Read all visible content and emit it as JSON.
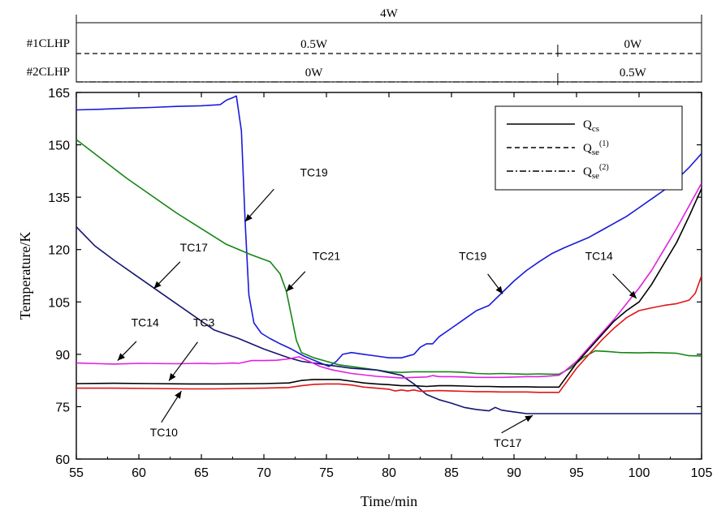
{
  "chart_data": {
    "type": "line",
    "xlabel": "Time/min",
    "ylabel": "Temperature/K",
    "xlim": [
      55,
      105
    ],
    "ylim": [
      60,
      165
    ],
    "x_ticks": [
      55,
      60,
      65,
      70,
      75,
      80,
      85,
      90,
      95,
      100,
      105
    ],
    "y_ticks": [
      60,
      75,
      90,
      105,
      120,
      135,
      150,
      165
    ],
    "grid": false,
    "legend": {
      "position": "top-right",
      "entries": [
        {
          "name": "Q",
          "sub": "cs",
          "sup": "",
          "dash": "solid"
        },
        {
          "name": "Q",
          "sub": "se",
          "sup": "(1)",
          "dash": "dashed"
        },
        {
          "name": "Q",
          "sub": "se",
          "sup": "(2)",
          "dash": "dashdot"
        }
      ]
    },
    "power_timeline": [
      {
        "label": "",
        "dash": "solid",
        "segments": [
          {
            "from": 55,
            "to": 105,
            "text": "4W",
            "text_at": 80
          }
        ]
      },
      {
        "label": "#1CLHP",
        "dash": "dashed",
        "segments": [
          {
            "from": 55,
            "to": 93.5,
            "text": "0.5W",
            "text_at": 74
          },
          {
            "from": 93.5,
            "to": 105,
            "text": "0W",
            "text_at": 99.5
          }
        ]
      },
      {
        "label": "#2CLHP",
        "dash": "dashdot",
        "segments": [
          {
            "from": 55,
            "to": 93.5,
            "text": "0W",
            "text_at": 74
          },
          {
            "from": 93.5,
            "to": 105,
            "text": "0.5W",
            "text_at": 99.5
          }
        ]
      }
    ],
    "series": [
      {
        "name": "TC19",
        "color": "#1a1adc",
        "x": [
          55,
          57,
          59,
          61,
          63,
          65,
          66.5,
          67,
          67.5,
          67.8,
          68.2,
          68.5,
          68.8,
          69.2,
          69.8,
          70.5,
          71.3,
          72.2,
          73.2,
          74.2,
          75.2,
          75.8,
          76.3,
          77,
          78,
          79,
          80,
          81,
          82,
          82.5,
          83,
          83.5,
          84,
          85,
          86,
          87,
          88,
          89,
          90,
          91,
          92,
          93,
          94,
          95,
          96,
          97,
          98,
          99,
          100,
          101,
          102,
          103,
          104,
          105
        ],
        "y": [
          160,
          160.2,
          160.5,
          160.7,
          161,
          161.2,
          161.5,
          162.8,
          163.5,
          164,
          154,
          128,
          107,
          99,
          96,
          94.5,
          93,
          91.5,
          89.5,
          88,
          86.5,
          88,
          90,
          90.5,
          90,
          89.5,
          89,
          89,
          90,
          92,
          93,
          93,
          95,
          97.5,
          100,
          102.5,
          104,
          107.5,
          111,
          114,
          116.5,
          118.8,
          120.5,
          122,
          123.5,
          125.5,
          127.5,
          129.5,
          132,
          134.5,
          137,
          140,
          143.5,
          147.5
        ]
      },
      {
        "name": "TC21",
        "color": "#158515",
        "x": [
          55,
          57,
          59,
          61,
          63,
          65,
          67,
          69,
          70.5,
          71.3,
          71.8,
          72.2,
          72.6,
          73,
          74,
          75,
          76,
          77,
          78,
          79,
          80,
          81,
          82,
          83,
          84,
          85,
          86,
          87,
          88,
          89,
          90,
          91,
          92,
          93,
          93.6,
          94.5,
          95.5,
          96.5,
          97.5,
          98.5,
          100,
          101,
          102,
          103,
          104,
          105
        ],
        "y": [
          151.5,
          146,
          140.5,
          135.5,
          130.5,
          126,
          121.5,
          118.5,
          116.5,
          113,
          108,
          101,
          94,
          90.5,
          89,
          88,
          87,
          86.5,
          86,
          85.5,
          85,
          84.8,
          85,
          85,
          85,
          85,
          84.8,
          84.5,
          84.4,
          84.5,
          84.4,
          84.3,
          84.4,
          84.3,
          84.3,
          86,
          89,
          91,
          90.8,
          90.5,
          90.4,
          90.5,
          90.4,
          90.3,
          89.6,
          89.5
        ]
      },
      {
        "name": "TC17",
        "color": "#151570",
        "x": [
          55,
          56.5,
          58,
          60,
          62,
          64,
          66,
          68,
          70,
          72,
          73,
          75,
          77,
          79,
          81,
          82,
          83,
          84,
          85,
          86,
          87,
          88,
          88.5,
          89,
          90,
          91,
          91.5,
          92,
          93,
          95,
          97,
          99,
          101,
          103,
          105
        ],
        "y": [
          126.5,
          121,
          117,
          112,
          107,
          102,
          97,
          94.5,
          91.5,
          89,
          88,
          87,
          86,
          85.5,
          84,
          81.5,
          78.5,
          77,
          76,
          74.8,
          74.2,
          73.8,
          74.8,
          74,
          73.5,
          73,
          73,
          73,
          73,
          73,
          73,
          73,
          73,
          73,
          73
        ]
      },
      {
        "name": "TC14",
        "color": "#e020e0",
        "x": [
          55,
          57,
          58,
          60,
          63,
          65,
          66,
          67,
          67.5,
          68,
          69,
          70,
          71,
          72,
          72.8,
          73.5,
          74.5,
          75.5,
          77,
          79,
          81,
          82,
          83,
          83.5,
          84,
          85,
          87,
          89,
          91,
          92,
          93,
          93.6,
          94,
          95,
          96,
          97,
          98,
          99,
          100,
          101,
          102,
          103,
          104,
          105
        ],
        "y": [
          87.5,
          87.3,
          87.2,
          87.4,
          87.3,
          87.4,
          87.3,
          87.4,
          87.5,
          87.4,
          88.2,
          88.2,
          88.3,
          88.7,
          89.3,
          88.2,
          86.5,
          85.5,
          84.5,
          83.7,
          83.2,
          83.4,
          83.5,
          83.9,
          83.6,
          83.6,
          83.4,
          83.4,
          83.6,
          83.6,
          83.8,
          84,
          85,
          88,
          92,
          96,
          100,
          104.5,
          109,
          114,
          120,
          126,
          132.5,
          139
        ]
      },
      {
        "name": "TC3",
        "color": "#000000",
        "x": [
          55,
          58,
          61,
          64,
          65,
          67,
          70,
          72,
          73,
          74,
          75,
          76,
          77,
          78,
          79,
          80,
          81,
          82,
          83,
          84,
          85,
          86,
          87,
          88,
          89,
          90,
          91,
          92,
          93,
          93.6,
          95,
          96,
          97,
          98,
          99,
          100,
          101,
          102,
          103,
          104,
          105
        ],
        "y": [
          81.6,
          81.7,
          81.6,
          81.5,
          81.5,
          81.5,
          81.6,
          81.8,
          82.5,
          82.8,
          82.8,
          82.8,
          82.3,
          81.8,
          81.5,
          81.3,
          81,
          81,
          80.8,
          81,
          81,
          80.9,
          80.8,
          80.8,
          80.7,
          80.7,
          80.7,
          80.6,
          80.6,
          80.6,
          87.5,
          91.5,
          95.5,
          99.5,
          102.5,
          105,
          110,
          116,
          122,
          129.5,
          137.5
        ]
      },
      {
        "name": "TC10",
        "color": "#e01515",
        "x": [
          55,
          58,
          61,
          64,
          66,
          68,
          70,
          72,
          73,
          74,
          75,
          76,
          77,
          78,
          79,
          80,
          80.5,
          81,
          81.5,
          82,
          82.5,
          83,
          84,
          85,
          86,
          87,
          88,
          89,
          90,
          91,
          92,
          93,
          93.6,
          95,
          96,
          97,
          98,
          99,
          100,
          101,
          102,
          103,
          104,
          104.5,
          105
        ],
        "y": [
          80.3,
          80.3,
          80.2,
          80.1,
          80.1,
          80.2,
          80.3,
          80.5,
          81,
          81.4,
          81.5,
          81.5,
          81.2,
          80.6,
          80.3,
          80,
          79.5,
          79.8,
          79.5,
          79.8,
          79.4,
          79.5,
          79.6,
          79.5,
          79.4,
          79.3,
          79.3,
          79.2,
          79.2,
          79.2,
          79.1,
          79.1,
          79.1,
          86,
          90,
          94,
          97.5,
          100.5,
          102.5,
          103.3,
          104,
          104.5,
          105.5,
          107.5,
          112.5
        ]
      }
    ],
    "annotations": [
      {
        "text": "TC19",
        "tx": 74,
        "ty": 141,
        "ax1": 70.8,
        "ay1": 137.3,
        "ax2": 68.5,
        "ay2": 128
      },
      {
        "text": "TC21",
        "tx": 75,
        "ty": 117,
        "ax1": 73.3,
        "ay1": 113.7,
        "ax2": 71.8,
        "ay2": 108
      },
      {
        "text": "TC17",
        "tx": 64.4,
        "ty": 119.5,
        "ax1": 63.3,
        "ay1": 116.5,
        "ax2": 61.2,
        "ay2": 108.8
      },
      {
        "text": "TC19",
        "tx": 86.7,
        "ty": 117,
        "ax1": 87.9,
        "ay1": 113,
        "ax2": 89.1,
        "ay2": 107.3
      },
      {
        "text": "TC14",
        "tx": 96.8,
        "ty": 117,
        "ax1": 97.9,
        "ay1": 113,
        "ax2": 99.8,
        "ay2": 106
      },
      {
        "text": "TC14",
        "tx": 60.5,
        "ty": 98,
        "ax1": 59.8,
        "ay1": 93.7,
        "ax2": 58.3,
        "ay2": 88.2
      },
      {
        "text": "TC3",
        "tx": 65.2,
        "ty": 98,
        "ax1": 64.7,
        "ay1": 93.5,
        "ax2": 62.4,
        "ay2": 82.4
      },
      {
        "text": "TC10",
        "tx": 62,
        "ty": 66.5,
        "ax1": 61.8,
        "ay1": 70.5,
        "ax2": 63.4,
        "ay2": 79.5
      },
      {
        "text": "TC17",
        "tx": 89.5,
        "ty": 63.5,
        "ax1": 89,
        "ay1": 67.5,
        "ax2": 91.5,
        "ay2": 72.5
      }
    ]
  }
}
